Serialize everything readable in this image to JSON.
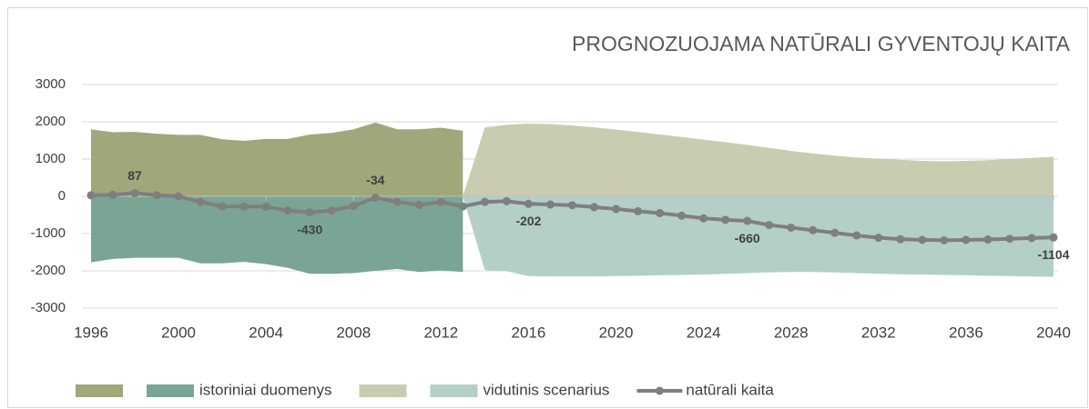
{
  "chart_data": {
    "type": "area",
    "title": "PROGNOZUOJAMA NATŪRALI GYVENTOJŲ KAITA",
    "x": [
      1996,
      1997,
      1998,
      1999,
      2000,
      2001,
      2002,
      2003,
      2004,
      2005,
      2006,
      2007,
      2008,
      2009,
      2010,
      2011,
      2012,
      2013,
      2014,
      2015,
      2016,
      2017,
      2018,
      2019,
      2020,
      2021,
      2022,
      2023,
      2024,
      2025,
      2026,
      2027,
      2028,
      2029,
      2030,
      2031,
      2032,
      2033,
      2034,
      2035,
      2036,
      2037,
      2038,
      2039,
      2040
    ],
    "xlim": [
      1996,
      2040
    ],
    "xticks": [
      1996,
      2000,
      2004,
      2008,
      2012,
      2016,
      2020,
      2024,
      2028,
      2032,
      2036,
      2040
    ],
    "ylim": [
      -3000,
      3000
    ],
    "yticks": [
      -3000,
      -2000,
      -1000,
      0,
      1000,
      2000,
      3000
    ],
    "grid": true,
    "series": [
      {
        "type": "area",
        "color": "#9fa87a",
        "values": [
          1800,
          1720,
          1730,
          1680,
          1650,
          1650,
          1530,
          1490,
          1540,
          1540,
          1660,
          1700,
          1800,
          1980,
          1800,
          1800,
          1840,
          1760,
          null,
          null,
          null,
          null,
          null,
          null,
          null,
          null,
          null,
          null,
          null,
          null,
          null,
          null,
          null,
          null,
          null,
          null,
          null,
          null,
          null,
          null,
          null,
          null,
          null,
          null,
          null
        ]
      },
      {
        "type": "area",
        "name": "istoriniai duomenys",
        "color": "#7aa596",
        "values": [
          -1770,
          -1680,
          -1650,
          -1650,
          -1650,
          -1800,
          -1800,
          -1760,
          -1820,
          -1920,
          -2080,
          -2080,
          -2060,
          -2000,
          -1950,
          -2030,
          -1990,
          -2030,
          null,
          null,
          null,
          null,
          null,
          null,
          null,
          null,
          null,
          null,
          null,
          null,
          null,
          null,
          null,
          null,
          null,
          null,
          null,
          null,
          null,
          null,
          null,
          null,
          null,
          null,
          null
        ]
      },
      {
        "type": "area",
        "color": "#c9ccb0",
        "values": [
          null,
          null,
          null,
          null,
          null,
          null,
          null,
          null,
          null,
          null,
          null,
          null,
          null,
          null,
          null,
          null,
          null,
          null,
          1850,
          1920,
          1950,
          1940,
          1900,
          1850,
          1790,
          1730,
          1660,
          1590,
          1520,
          1450,
          1380,
          1300,
          1220,
          1150,
          1090,
          1040,
          1010,
          980,
          950,
          940,
          950,
          970,
          1000,
          1030,
          1060
        ]
      },
      {
        "type": "area",
        "name": "vidutinis scenarius",
        "color": "#b3cfc8",
        "values": [
          null,
          null,
          null,
          null,
          null,
          null,
          null,
          null,
          null,
          null,
          null,
          null,
          null,
          null,
          null,
          null,
          null,
          null,
          -1980,
          -2010,
          -2140,
          -2150,
          -2150,
          -2150,
          -2140,
          -2130,
          -2120,
          -2110,
          -2100,
          -2080,
          -2060,
          -2040,
          -2030,
          -2030,
          -2040,
          -2060,
          -2080,
          -2090,
          -2100,
          -2110,
          -2120,
          -2130,
          -2140,
          -2150,
          -2160
        ]
      },
      {
        "type": "line",
        "name": "natūrali kaita",
        "color": "#7f7f7f",
        "values": [
          30,
          40,
          87,
          30,
          0,
          -150,
          -270,
          -270,
          -280,
          -380,
          -430,
          -380,
          -260,
          -34,
          -150,
          -230,
          -150,
          -270,
          -150,
          -130,
          -202,
          -220,
          -240,
          -290,
          -340,
          -400,
          -450,
          -520,
          -590,
          -630,
          -660,
          -770,
          -840,
          -910,
          -980,
          -1050,
          -1110,
          -1150,
          -1170,
          -1180,
          -1170,
          -1160,
          -1140,
          -1120,
          -1104
        ],
        "value_labels": [
          null,
          null,
          "87",
          null,
          null,
          null,
          null,
          null,
          null,
          null,
          "-430",
          null,
          null,
          "-34",
          null,
          null,
          null,
          null,
          null,
          null,
          "-202",
          null,
          null,
          null,
          null,
          null,
          null,
          null,
          null,
          null,
          "-660",
          null,
          null,
          null,
          null,
          null,
          null,
          null,
          null,
          null,
          null,
          null,
          null,
          null,
          "-1104"
        ]
      }
    ]
  }
}
